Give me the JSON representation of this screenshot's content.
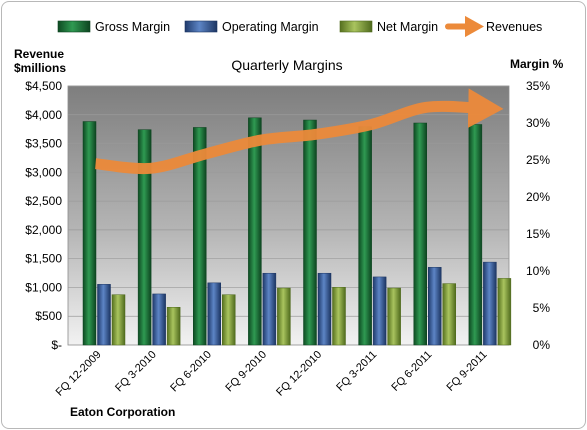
{
  "chart_data": {
    "type": "bar+line",
    "title": "Quarterly Margins",
    "left_axis_title": [
      "Revenue",
      "$millions"
    ],
    "right_axis_title": "Margin %",
    "company": "Eaton Corporation",
    "categories": [
      "FQ 12-2009",
      "FQ 3-2010",
      "FQ 6-2010",
      "FQ 9-2010",
      "FQ 12-2010",
      "FQ 3-2011",
      "FQ 6-2011",
      "FQ 9-2011"
    ],
    "series": [
      {
        "name": "Gross Margin",
        "axis": "right",
        "unit": "%",
        "color": "#1e7a3c",
        "values": [
          30.2,
          29.1,
          29.4,
          30.7,
          30.4,
          29.5,
          30.0,
          29.8
        ]
      },
      {
        "name": "Operating Margin",
        "axis": "right",
        "unit": "%",
        "color": "#3a5f9e",
        "values": [
          8.2,
          6.9,
          8.4,
          9.7,
          9.7,
          9.2,
          10.5,
          11.2
        ]
      },
      {
        "name": "Net Margin",
        "axis": "right",
        "unit": "%",
        "color": "#8aa640",
        "values": [
          6.8,
          5.1,
          6.8,
          7.7,
          7.8,
          7.7,
          8.3,
          9.0
        ]
      },
      {
        "name": "Revenues",
        "axis": "left",
        "unit": "$millions",
        "color": "#ec8a3a",
        "values": [
          3150,
          3070,
          3320,
          3560,
          3660,
          3830,
          4130,
          4110
        ]
      }
    ],
    "left_axis": {
      "min": 0,
      "max": 4500,
      "step": 500,
      "tick_labels": [
        "$-",
        "$500",
        "$1,000",
        "$1,500",
        "$2,000",
        "$2,500",
        "$3,000",
        "$3,500",
        "$4,000",
        "$4,500"
      ]
    },
    "right_axis": {
      "min": 0,
      "max": 35,
      "step": 5,
      "tick_labels": [
        "0%",
        "5%",
        "10%",
        "15%",
        "20%",
        "25%",
        "30%",
        "35%"
      ]
    },
    "legend_position": "top",
    "grid": true
  }
}
